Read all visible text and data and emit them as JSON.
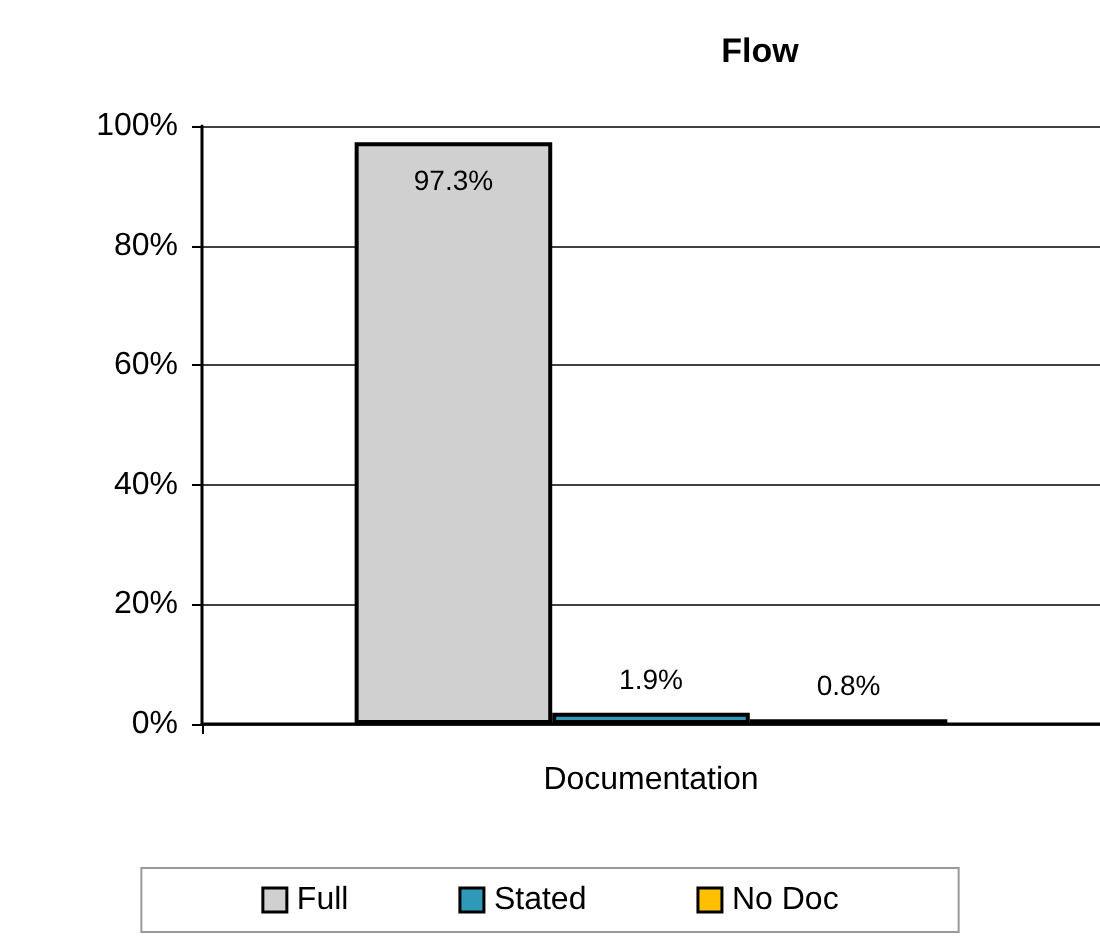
{
  "chart_data": {
    "type": "bar",
    "title": "Flow",
    "categories": [
      "Documentation"
    ],
    "series": [
      {
        "name": "Full",
        "color": "#d0d0d0",
        "values": [
          97.3
        ],
        "value_labels": [
          "97.3%"
        ]
      },
      {
        "name": "Stated",
        "color": "#2e9ab8",
        "values": [
          1.9
        ],
        "value_labels": [
          "1.9%"
        ]
      },
      {
        "name": "No Doc",
        "color": "#ffc000",
        "values": [
          0.8
        ],
        "value_labels": [
          "0.8%"
        ]
      }
    ],
    "ylim": [
      0,
      100
    ],
    "yticks": [
      {
        "value": 0,
        "label": "0%"
      },
      {
        "value": 20,
        "label": "20%"
      },
      {
        "value": 40,
        "label": "40%"
      },
      {
        "value": 60,
        "label": "60%"
      },
      {
        "value": 80,
        "label": "80%"
      },
      {
        "value": 100,
        "label": "100%"
      }
    ],
    "grid": "y",
    "legend": "bottom"
  }
}
